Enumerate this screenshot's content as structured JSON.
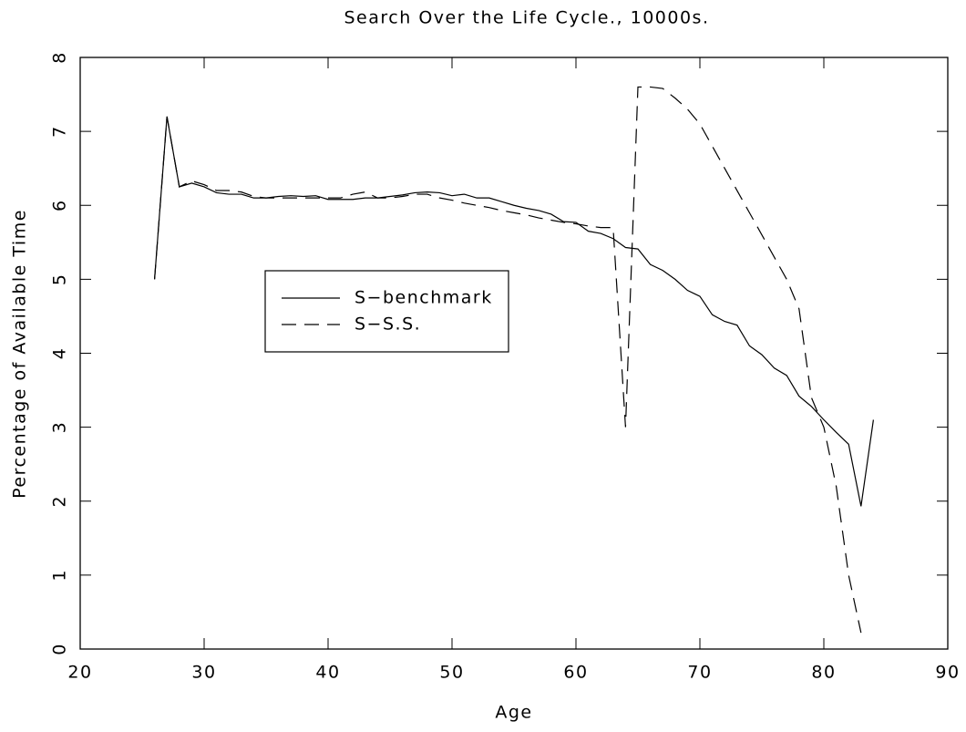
{
  "chart_data": {
    "type": "line",
    "title": "Search Over the Life Cycle., 10000s.",
    "x_label": "Age",
    "y_label": "Percentage of Available Time",
    "x": [
      26,
      27,
      28,
      29,
      30,
      31,
      32,
      33,
      34,
      35,
      36,
      37,
      38,
      39,
      40,
      41,
      42,
      43,
      44,
      45,
      46,
      47,
      48,
      49,
      50,
      51,
      52,
      53,
      54,
      55,
      56,
      57,
      58,
      59,
      60,
      61,
      62,
      63,
      64,
      65,
      66,
      67,
      68,
      69,
      70,
      71,
      72,
      73,
      74,
      75,
      76,
      77,
      78,
      79,
      80,
      81,
      82,
      83,
      84
    ],
    "series": [
      {
        "name": "S−benchmark",
        "color": "#000000",
        "dash": "none",
        "values": [
          5.0,
          7.2,
          6.25,
          6.3,
          6.25,
          6.17,
          6.15,
          6.15,
          6.1,
          6.1,
          6.12,
          6.13,
          6.12,
          6.13,
          6.08,
          6.08,
          6.08,
          6.1,
          6.1,
          6.12,
          6.14,
          6.17,
          6.18,
          6.17,
          6.13,
          6.15,
          6.1,
          6.1,
          6.05,
          6.0,
          5.96,
          5.93,
          5.88,
          5.78,
          5.77,
          5.65,
          5.62,
          5.55,
          5.43,
          5.41,
          5.2,
          5.12,
          5.0,
          4.85,
          4.77,
          4.52,
          4.43,
          4.38,
          4.1,
          3.98,
          3.8,
          3.7,
          3.42,
          3.28,
          3.1,
          2.93,
          2.77,
          1.93,
          3.1
        ]
      },
      {
        "name": "S−S.S.",
        "color": "#000000",
        "dash": "16 9",
        "values": [
          5.0,
          7.2,
          6.25,
          6.33,
          6.28,
          6.2,
          6.2,
          6.18,
          6.12,
          6.1,
          6.1,
          6.1,
          6.1,
          6.1,
          6.1,
          6.1,
          6.15,
          6.18,
          6.1,
          6.1,
          6.12,
          6.15,
          6.15,
          6.1,
          6.07,
          6.03,
          6.0,
          5.97,
          5.93,
          5.9,
          5.87,
          5.83,
          5.8,
          5.77,
          5.75,
          5.72,
          5.7,
          5.7,
          3.0,
          7.6,
          7.6,
          7.58,
          7.45,
          7.3,
          7.1,
          6.8,
          6.5,
          6.2,
          5.9,
          5.6,
          5.3,
          5.0,
          4.6,
          3.4,
          3.0,
          2.2,
          1.0,
          0.22,
          null
        ]
      }
    ],
    "xlim": [
      20,
      90
    ],
    "ylim": [
      0,
      8
    ],
    "xticks": [
      20,
      30,
      40,
      50,
      60,
      70,
      80,
      90
    ],
    "yticks": [
      0,
      1,
      2,
      3,
      4,
      5,
      6,
      7,
      8
    ],
    "grid": false,
    "legend": "center left"
  }
}
